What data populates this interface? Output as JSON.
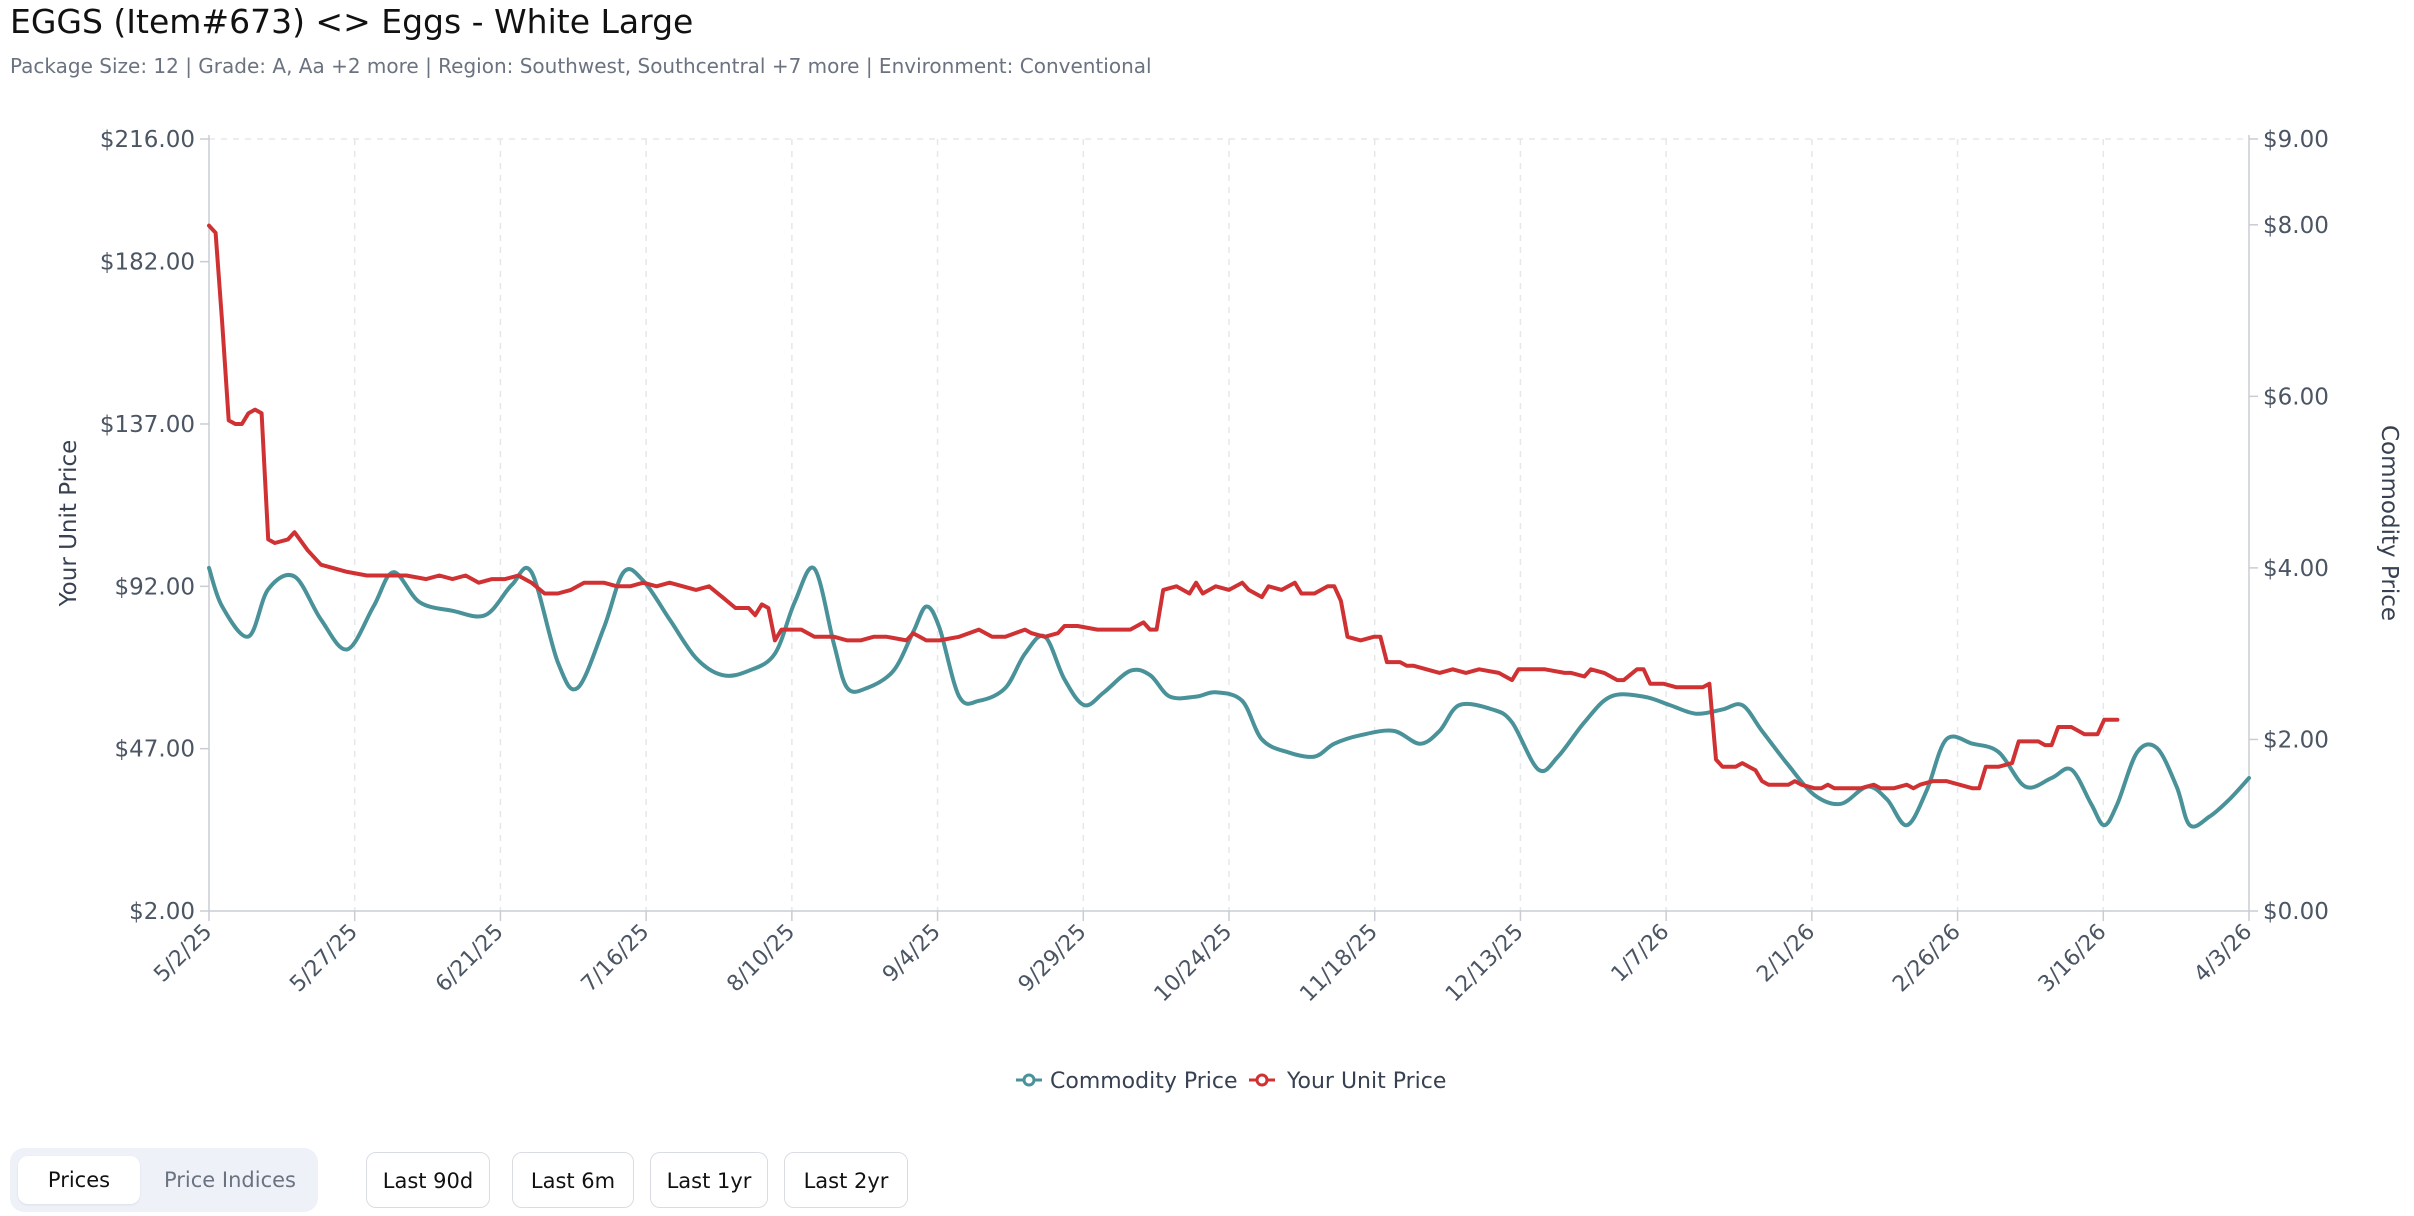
{
  "title": "EGGS (Item#673) <> Eggs - White Large",
  "subtitle": "Package Size: 12 | Grade: A, Aa +2 more | Region: Southwest, Southcentral +7 more | Environment: Conventional",
  "controls": {
    "view_tabs": [
      {
        "label": "Prices",
        "active": true
      },
      {
        "label": "Price Indices",
        "active": false
      }
    ],
    "ranges": [
      "Last 90d",
      "Last 6m",
      "Last 1yr",
      "Last 2yr"
    ]
  },
  "chart_data": {
    "type": "line",
    "title": "",
    "x_tick_labels": [
      "5/2/25",
      "5/27/25",
      "6/21/25",
      "7/16/25",
      "8/10/25",
      "9/4/25",
      "9/29/25",
      "10/24/25",
      "11/18/25",
      "12/13/25",
      "1/7/26",
      "2/1/26",
      "2/26/26",
      "3/16/26",
      "4/3/26"
    ],
    "y_left": {
      "label": "Your Unit Price",
      "ticks": [
        "$216.00",
        "$182.00",
        "$137.00",
        "$92.00",
        "$47.00",
        "$2.00"
      ],
      "range": [
        2,
        216
      ]
    },
    "y_right": {
      "label": "Commodity Price",
      "ticks": [
        "$9.00",
        "$8.00",
        "$6.00",
        "$4.00",
        "$2.00",
        "$0.00"
      ],
      "range": [
        0,
        9
      ]
    },
    "grid": "vertical dashed",
    "legend_position": "bottom-center",
    "series": [
      {
        "name": "Commodity Price",
        "axis": "right",
        "color": "#4a9299",
        "points": [
          [
            0,
            4.0
          ],
          [
            2,
            3.55
          ],
          [
            6,
            3.2
          ],
          [
            9,
            3.75
          ],
          [
            13,
            3.9
          ],
          [
            17,
            3.4
          ],
          [
            21,
            3.05
          ],
          [
            25,
            3.55
          ],
          [
            28,
            3.95
          ],
          [
            32,
            3.6
          ],
          [
            37,
            3.5
          ],
          [
            42,
            3.45
          ],
          [
            46,
            3.8
          ],
          [
            49,
            3.95
          ],
          [
            53,
            2.9
          ],
          [
            56,
            2.6
          ],
          [
            60,
            3.3
          ],
          [
            63,
            3.95
          ],
          [
            66,
            3.85
          ],
          [
            70,
            3.4
          ],
          [
            74,
            2.95
          ],
          [
            78,
            2.75
          ],
          [
            82,
            2.8
          ],
          [
            86,
            3.0
          ],
          [
            89,
            3.6
          ],
          [
            92,
            3.99
          ],
          [
            95,
            3.1
          ],
          [
            97,
            2.6
          ],
          [
            100,
            2.6
          ],
          [
            104,
            2.8
          ],
          [
            107,
            3.25
          ],
          [
            109,
            3.55
          ],
          [
            111,
            3.3
          ],
          [
            114,
            2.5
          ],
          [
            117,
            2.45
          ],
          [
            121,
            2.6
          ],
          [
            124,
            3.0
          ],
          [
            127,
            3.2
          ],
          [
            130,
            2.7
          ],
          [
            133,
            2.4
          ],
          [
            136,
            2.55
          ],
          [
            140,
            2.8
          ],
          [
            143,
            2.75
          ],
          [
            146,
            2.5
          ],
          [
            150,
            2.5
          ],
          [
            153,
            2.55
          ],
          [
            157,
            2.45
          ],
          [
            160,
            2.0
          ],
          [
            164,
            1.85
          ],
          [
            168,
            1.8
          ],
          [
            171,
            1.95
          ],
          [
            175,
            2.05
          ],
          [
            180,
            2.1
          ],
          [
            184,
            1.95
          ],
          [
            187,
            2.1
          ],
          [
            190,
            2.4
          ],
          [
            195,
            2.35
          ],
          [
            198,
            2.2
          ],
          [
            202,
            1.65
          ],
          [
            205,
            1.8
          ],
          [
            209,
            2.2
          ],
          [
            213,
            2.5
          ],
          [
            218,
            2.5
          ],
          [
            222,
            2.4
          ],
          [
            226,
            2.3
          ],
          [
            230,
            2.35
          ],
          [
            233,
            2.4
          ],
          [
            236,
            2.1
          ],
          [
            240,
            1.7
          ],
          [
            244,
            1.35
          ],
          [
            248,
            1.25
          ],
          [
            252,
            1.45
          ],
          [
            255,
            1.3
          ],
          [
            258,
            1.0
          ],
          [
            261,
            1.4
          ],
          [
            264,
            2.0
          ],
          [
            268,
            1.95
          ],
          [
            272,
            1.85
          ],
          [
            276,
            1.45
          ],
          [
            280,
            1.55
          ],
          [
            283,
            1.65
          ],
          [
            286,
            1.25
          ],
          [
            288,
            1.0
          ],
          [
            290,
            1.25
          ],
          [
            293,
            1.85
          ],
          [
            296,
            1.9
          ],
          [
            299,
            1.45
          ],
          [
            301,
            1.0
          ],
          [
            304,
            1.1
          ],
          [
            307,
            1.3
          ],
          [
            310,
            1.55
          ]
        ]
      },
      {
        "name": "Your Unit Price",
        "axis": "left",
        "color": "#d03234",
        "points": [
          [
            0,
            192
          ],
          [
            1,
            190
          ],
          [
            2,
            165
          ],
          [
            3,
            138
          ],
          [
            4,
            137
          ],
          [
            5,
            137
          ],
          [
            6,
            140
          ],
          [
            7,
            141
          ],
          [
            8,
            140
          ],
          [
            9,
            105
          ],
          [
            10,
            104
          ],
          [
            12,
            105
          ],
          [
            13,
            107
          ],
          [
            15,
            102
          ],
          [
            17,
            98
          ],
          [
            19,
            97
          ],
          [
            21,
            96
          ],
          [
            24,
            95
          ],
          [
            27,
            95
          ],
          [
            30,
            95
          ],
          [
            33,
            94
          ],
          [
            35,
            95
          ],
          [
            37,
            94
          ],
          [
            39,
            95
          ],
          [
            41,
            93
          ],
          [
            43,
            94
          ],
          [
            45,
            94
          ],
          [
            47,
            95
          ],
          [
            49,
            93
          ],
          [
            51,
            90
          ],
          [
            53,
            90
          ],
          [
            55,
            91
          ],
          [
            57,
            93
          ],
          [
            60,
            93
          ],
          [
            62,
            92
          ],
          [
            64,
            92
          ],
          [
            66,
            93
          ],
          [
            68,
            92
          ],
          [
            70,
            93
          ],
          [
            72,
            92
          ],
          [
            74,
            91
          ],
          [
            76,
            92
          ],
          [
            78,
            89
          ],
          [
            80,
            86
          ],
          [
            82,
            86
          ],
          [
            83,
            84
          ],
          [
            84,
            87
          ],
          [
            85,
            86
          ],
          [
            86,
            77
          ],
          [
            87,
            80
          ],
          [
            90,
            80
          ],
          [
            92,
            78
          ],
          [
            95,
            78
          ],
          [
            97,
            77
          ],
          [
            99,
            77
          ],
          [
            101,
            78
          ],
          [
            103,
            78
          ],
          [
            106,
            77
          ],
          [
            107,
            79
          ],
          [
            109,
            77
          ],
          [
            111,
            77
          ],
          [
            114,
            78
          ],
          [
            117,
            80
          ],
          [
            119,
            78
          ],
          [
            121,
            78
          ],
          [
            124,
            80
          ],
          [
            125,
            79
          ],
          [
            127,
            78
          ],
          [
            129,
            79
          ],
          [
            130,
            81
          ],
          [
            132,
            81
          ],
          [
            135,
            80
          ],
          [
            138,
            80
          ],
          [
            140,
            80
          ],
          [
            142,
            82
          ],
          [
            143,
            80
          ],
          [
            144,
            80
          ],
          [
            145,
            91
          ],
          [
            147,
            92
          ],
          [
            148,
            91
          ],
          [
            149,
            90
          ],
          [
            150,
            93
          ],
          [
            151,
            90
          ],
          [
            153,
            92
          ],
          [
            155,
            91
          ],
          [
            157,
            93
          ],
          [
            158,
            91
          ],
          [
            160,
            89
          ],
          [
            161,
            92
          ],
          [
            163,
            91
          ],
          [
            165,
            93
          ],
          [
            166,
            90
          ],
          [
            168,
            90
          ],
          [
            170,
            92
          ],
          [
            171,
            92
          ],
          [
            172,
            88
          ],
          [
            173,
            78
          ],
          [
            175,
            77
          ],
          [
            177,
            78
          ],
          [
            178,
            78
          ],
          [
            179,
            71
          ],
          [
            181,
            71
          ],
          [
            182,
            70
          ],
          [
            183,
            70
          ],
          [
            185,
            69
          ],
          [
            187,
            68
          ],
          [
            189,
            69
          ],
          [
            191,
            68
          ],
          [
            193,
            69
          ],
          [
            196,
            68
          ],
          [
            197,
            67
          ],
          [
            198,
            66
          ],
          [
            199,
            69
          ],
          [
            201,
            69
          ],
          [
            203,
            69
          ],
          [
            206,
            68
          ],
          [
            207,
            68
          ],
          [
            209,
            67
          ],
          [
            210,
            69
          ],
          [
            212,
            68
          ],
          [
            214,
            66
          ],
          [
            215,
            66
          ],
          [
            217,
            69
          ],
          [
            218,
            69
          ],
          [
            219,
            65
          ],
          [
            221,
            65
          ],
          [
            223,
            64
          ],
          [
            225,
            64
          ],
          [
            227,
            64
          ],
          [
            228,
            65
          ],
          [
            229,
            44
          ],
          [
            230,
            42
          ],
          [
            232,
            42
          ],
          [
            233,
            43
          ],
          [
            234,
            42
          ],
          [
            235,
            41
          ],
          [
            236,
            38
          ],
          [
            237,
            37
          ],
          [
            239,
            37
          ],
          [
            240,
            37
          ],
          [
            241,
            38
          ],
          [
            242,
            37
          ],
          [
            244,
            36
          ],
          [
            245,
            36
          ],
          [
            246,
            37
          ],
          [
            247,
            36
          ],
          [
            249,
            36
          ],
          [
            251,
            36
          ],
          [
            253,
            37
          ],
          [
            254,
            36
          ],
          [
            256,
            36
          ],
          [
            258,
            37
          ],
          [
            259,
            36
          ],
          [
            260,
            37
          ],
          [
            262,
            38
          ],
          [
            264,
            38
          ],
          [
            266,
            37
          ],
          [
            268,
            36
          ],
          [
            269,
            36
          ],
          [
            270,
            42
          ],
          [
            272,
            42
          ],
          [
            274,
            43
          ],
          [
            275,
            49
          ],
          [
            276,
            49
          ],
          [
            278,
            49
          ],
          [
            279,
            48
          ],
          [
            280,
            48
          ],
          [
            281,
            53
          ],
          [
            283,
            53
          ],
          [
            285,
            51
          ],
          [
            287,
            51
          ],
          [
            288,
            55
          ],
          [
            290,
            55
          ]
        ]
      }
    ]
  }
}
